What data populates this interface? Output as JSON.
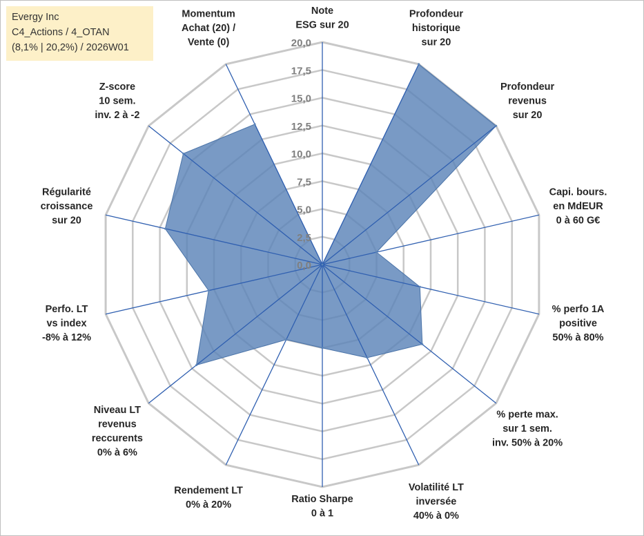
{
  "info_box": {
    "line1": "Evergy Inc",
    "line2": "C4_Actions / 4_OTAN",
    "line3": "(8,1% | 20,2%) / 2026W01"
  },
  "colors": {
    "fill": "#5b84b8",
    "spoke": "#2f5fb0",
    "grid": "#c8c8c8",
    "tick_text": "#7f7f7f",
    "info_bg": "#fdf0c8"
  },
  "chart_data": {
    "type": "radar",
    "title": "",
    "range": [
      0,
      20
    ],
    "ticks": [
      "0,0",
      "2,5",
      "5,0",
      "7,5",
      "10,0",
      "12,5",
      "15,0",
      "17,5",
      "20,0"
    ],
    "tick_values": [
      0,
      2.5,
      5,
      7.5,
      10,
      12.5,
      15,
      17.5,
      20
    ],
    "axes": [
      {
        "label": [
          "Note",
          "ESG sur 20"
        ]
      },
      {
        "label": [
          "Profondeur",
          "historique",
          "sur 20"
        ]
      },
      {
        "label": [
          "Profondeur",
          "revenus",
          "sur 20"
        ]
      },
      {
        "label": [
          "Capi. bours.",
          "en MdEUR",
          "0 à 60 G€"
        ]
      },
      {
        "label": [
          "% perfo 1A",
          "positive",
          "50% à 80%"
        ]
      },
      {
        "label": [
          "% perte max.",
          "sur 1 sem.",
          "inv. 50% à 20%"
        ]
      },
      {
        "label": [
          "Volatilité LT",
          "inversée",
          "40% à 0%"
        ]
      },
      {
        "label": [
          "Ratio Sharpe",
          "0 à 1"
        ]
      },
      {
        "label": [
          "Rendement LT",
          "0% à 20%"
        ]
      },
      {
        "label": [
          "Niveau LT",
          "revenus",
          "reccurents",
          "0% à 6%"
        ]
      },
      {
        "label": [
          "Perfo. LT",
          "vs index",
          "-8% à 12%"
        ]
      },
      {
        "label": [
          "Régularité",
          "croissance",
          "sur 20"
        ]
      },
      {
        "label": [
          "Z-score",
          "10 sem.",
          "inv. 2 à -2"
        ]
      },
      {
        "label": [
          "Momentum",
          "Achat (20) /",
          "Vente (0)"
        ]
      }
    ],
    "series": [
      {
        "name": "Evergy Inc",
        "values": [
          0,
          20,
          20,
          5,
          9,
          11.5,
          9.3,
          7.5,
          7.5,
          14.5,
          10.5,
          14.5,
          16,
          14
        ]
      }
    ]
  }
}
